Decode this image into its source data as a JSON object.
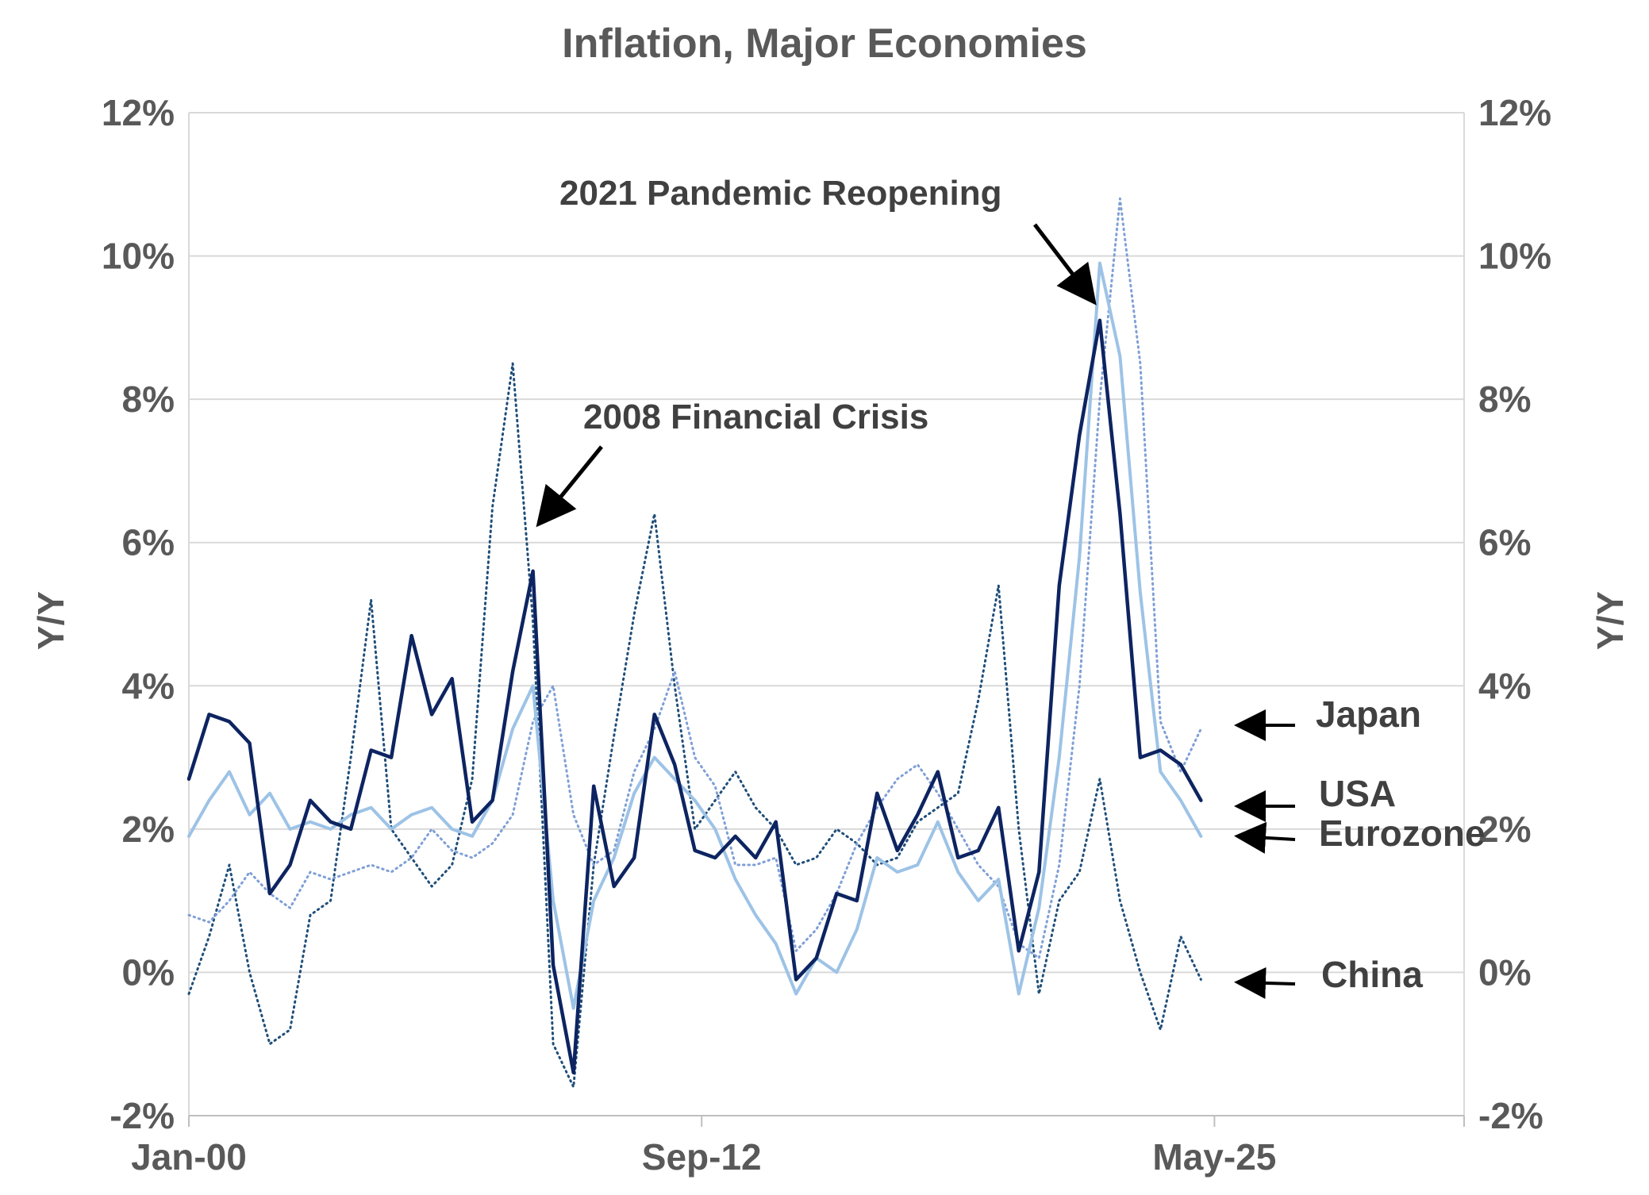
{
  "chart_data": {
    "type": "line",
    "title": "Inflation, Major Economies",
    "ylabel_left": "Y/Y",
    "ylabel_right": "Y/Y",
    "ylim": [
      -2,
      12
    ],
    "yticks": [
      -2,
      0,
      2,
      4,
      6,
      8,
      10,
      12
    ],
    "ytick_labels": [
      "-2%",
      "0%",
      "2%",
      "4%",
      "6%",
      "8%",
      "10%",
      "12%"
    ],
    "x_tick_labels": [
      "Jan-00",
      "Sep-12",
      "May-25"
    ],
    "x_tick_positions": [
      2000.0,
      2012.667,
      2025.333
    ],
    "xlim": [
      2000.0,
      2031.5
    ],
    "grid": true,
    "annotations": [
      {
        "text": "2008 Financial Crisis",
        "x": 2008.7,
        "y": 6.3
      },
      {
        "text": "2021 Pandemic Reopening",
        "x": 2022.3,
        "y": 9.4
      }
    ],
    "series": [
      {
        "name": "Japan",
        "style": "dotted",
        "color": "#7f9fd6",
        "x": [
          2000.0,
          2000.5,
          2001.0,
          2001.5,
          2002.0,
          2002.5,
          2003.0,
          2003.5,
          2004.0,
          2004.5,
          2005.0,
          2005.5,
          2006.0,
          2006.5,
          2007.0,
          2007.5,
          2008.0,
          2008.5,
          2009.0,
          2009.5,
          2010.0,
          2010.5,
          2011.0,
          2011.5,
          2012.0,
          2012.5,
          2013.0,
          2013.5,
          2014.0,
          2014.5,
          2015.0,
          2015.5,
          2016.0,
          2016.5,
          2017.0,
          2017.5,
          2018.0,
          2018.5,
          2019.0,
          2019.5,
          2020.0,
          2020.5,
          2021.0,
          2021.5,
          2022.0,
          2022.5,
          2023.0,
          2023.5,
          2024.0,
          2024.5,
          2025.0
        ],
        "y": [
          0.8,
          0.7,
          1.0,
          1.4,
          1.1,
          0.9,
          1.4,
          1.3,
          1.4,
          1.5,
          1.4,
          1.6,
          2.0,
          1.7,
          1.6,
          1.8,
          2.2,
          3.5,
          4.0,
          2.2,
          1.5,
          1.7,
          2.8,
          3.4,
          4.2,
          3.0,
          2.6,
          1.5,
          1.5,
          1.6,
          0.3,
          0.6,
          1.1,
          1.8,
          2.3,
          2.7,
          2.9,
          2.5,
          2.0,
          1.5,
          1.2,
          0.4,
          0.2,
          1.5,
          4.0,
          8.0,
          10.8,
          8.5,
          3.5,
          2.8,
          3.4
        ]
      },
      {
        "name": "USA",
        "style": "solid",
        "color": "#0d2461",
        "x": [
          2000.0,
          2000.5,
          2001.0,
          2001.5,
          2002.0,
          2002.5,
          2003.0,
          2003.5,
          2004.0,
          2004.5,
          2005.0,
          2005.5,
          2006.0,
          2006.5,
          2007.0,
          2007.5,
          2008.0,
          2008.5,
          2009.0,
          2009.5,
          2010.0,
          2010.5,
          2011.0,
          2011.5,
          2012.0,
          2012.5,
          2013.0,
          2013.5,
          2014.0,
          2014.5,
          2015.0,
          2015.5,
          2016.0,
          2016.5,
          2017.0,
          2017.5,
          2018.0,
          2018.5,
          2019.0,
          2019.5,
          2020.0,
          2020.5,
          2021.0,
          2021.5,
          2022.0,
          2022.5,
          2023.0,
          2023.5,
          2024.0,
          2024.5,
          2025.0
        ],
        "y": [
          2.7,
          3.6,
          3.5,
          3.2,
          1.1,
          1.5,
          2.4,
          2.1,
          2.0,
          3.1,
          3.0,
          4.7,
          3.6,
          4.1,
          2.1,
          2.4,
          4.2,
          5.6,
          0.1,
          -1.4,
          2.6,
          1.2,
          1.6,
          3.6,
          2.9,
          1.7,
          1.6,
          1.9,
          1.6,
          2.1,
          -0.1,
          0.2,
          1.1,
          1.0,
          2.5,
          1.7,
          2.2,
          2.8,
          1.6,
          1.7,
          2.3,
          0.3,
          1.4,
          5.4,
          7.5,
          9.1,
          6.4,
          3.0,
          3.1,
          2.9,
          2.4
        ]
      },
      {
        "name": "Eurozone",
        "style": "solid",
        "color": "#9dc3e6",
        "x": [
          2000.0,
          2000.5,
          2001.0,
          2001.5,
          2002.0,
          2002.5,
          2003.0,
          2003.5,
          2004.0,
          2004.5,
          2005.0,
          2005.5,
          2006.0,
          2006.5,
          2007.0,
          2007.5,
          2008.0,
          2008.5,
          2009.0,
          2009.5,
          2010.0,
          2010.5,
          2011.0,
          2011.5,
          2012.0,
          2012.5,
          2013.0,
          2013.5,
          2014.0,
          2014.5,
          2015.0,
          2015.5,
          2016.0,
          2016.5,
          2017.0,
          2017.5,
          2018.0,
          2018.5,
          2019.0,
          2019.5,
          2020.0,
          2020.5,
          2021.0,
          2021.5,
          2022.0,
          2022.5,
          2023.0,
          2023.5,
          2024.0,
          2024.5,
          2025.0
        ],
        "y": [
          1.9,
          2.4,
          2.8,
          2.2,
          2.5,
          2.0,
          2.1,
          2.0,
          2.2,
          2.3,
          2.0,
          2.2,
          2.3,
          2.0,
          1.9,
          2.4,
          3.4,
          4.0,
          1.0,
          -0.5,
          1.0,
          1.6,
          2.5,
          3.0,
          2.7,
          2.4,
          2.0,
          1.3,
          0.8,
          0.4,
          -0.3,
          0.2,
          0.0,
          0.6,
          1.6,
          1.4,
          1.5,
          2.1,
          1.4,
          1.0,
          1.3,
          -0.3,
          0.9,
          3.0,
          5.8,
          9.9,
          8.6,
          5.3,
          2.8,
          2.4,
          1.9
        ]
      },
      {
        "name": "China",
        "style": "dotted",
        "color": "#1f4e79",
        "x": [
          2000.0,
          2000.5,
          2001.0,
          2001.5,
          2002.0,
          2002.5,
          2003.0,
          2003.5,
          2004.0,
          2004.5,
          2005.0,
          2005.5,
          2006.0,
          2006.5,
          2007.0,
          2007.5,
          2008.0,
          2008.5,
          2009.0,
          2009.5,
          2010.0,
          2010.5,
          2011.0,
          2011.5,
          2012.0,
          2012.5,
          2013.0,
          2013.5,
          2014.0,
          2014.5,
          2015.0,
          2015.5,
          2016.0,
          2016.5,
          2017.0,
          2017.5,
          2018.0,
          2018.5,
          2019.0,
          2019.5,
          2020.0,
          2020.5,
          2021.0,
          2021.5,
          2022.0,
          2022.5,
          2023.0,
          2023.5,
          2024.0,
          2024.5,
          2025.0
        ],
        "y": [
          -0.3,
          0.5,
          1.5,
          0.0,
          -1.0,
          -0.8,
          0.8,
          1.0,
          3.0,
          5.2,
          2.0,
          1.6,
          1.2,
          1.5,
          2.7,
          6.5,
          8.5,
          4.9,
          -1.0,
          -1.6,
          1.5,
          3.3,
          5.0,
          6.4,
          4.0,
          2.0,
          2.4,
          2.8,
          2.3,
          2.0,
          1.5,
          1.6,
          2.0,
          1.8,
          1.5,
          1.6,
          2.1,
          2.3,
          2.5,
          3.8,
          5.4,
          2.0,
          -0.3,
          1.0,
          1.4,
          2.7,
          1.0,
          0.0,
          -0.8,
          0.5,
          -0.1
        ]
      }
    ],
    "end_labels": [
      {
        "text": "Japan",
        "y": 3.45
      },
      {
        "text": "USA",
        "y": 2.35
      },
      {
        "text": "Eurozone",
        "y": 1.9
      },
      {
        "text": "China",
        "y": -0.1
      }
    ]
  }
}
